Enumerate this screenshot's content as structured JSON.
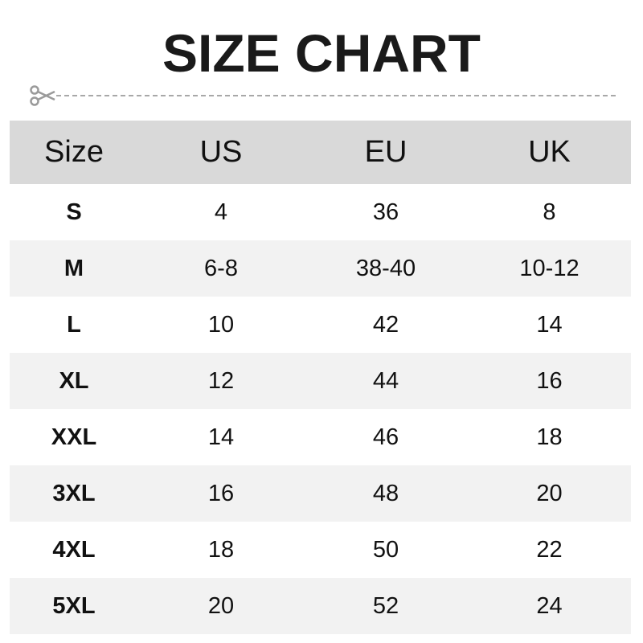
{
  "title": "SIZE CHART",
  "icons": {
    "divider": "scissors-icon"
  },
  "colors": {
    "header_bg": "#d9d9d9",
    "alt_row_bg": "#f2f2f2"
  },
  "table": {
    "headers": [
      "Size",
      "US",
      "EU",
      "UK"
    ],
    "rows": [
      [
        "S",
        "4",
        "36",
        "8"
      ],
      [
        "M",
        "6-8",
        "38-40",
        "10-12"
      ],
      [
        "L",
        "10",
        "42",
        "14"
      ],
      [
        "XL",
        "12",
        "44",
        "16"
      ],
      [
        "XXL",
        "14",
        "46",
        "18"
      ],
      [
        "3XL",
        "16",
        "48",
        "20"
      ],
      [
        "4XL",
        "18",
        "50",
        "22"
      ],
      [
        "5XL",
        "20",
        "52",
        "24"
      ]
    ]
  }
}
